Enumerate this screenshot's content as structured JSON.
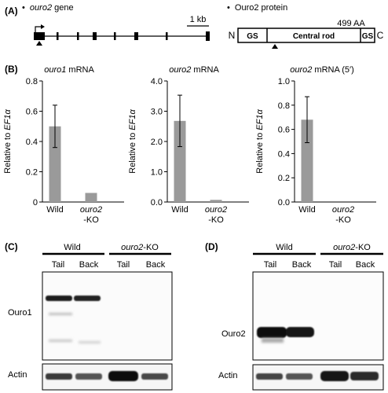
{
  "panels": {
    "a": {
      "label": "(A)",
      "gene": {
        "bullet": "•",
        "name": "ouro2",
        "suffix": " gene",
        "scale_label": "1 kb"
      },
      "protein": {
        "bullet": "•",
        "title": "Ouro2 protein",
        "length_label": "499 AA",
        "n_term": "N",
        "c_term": "C",
        "domains": [
          "GS",
          "Central rod",
          "GS"
        ]
      }
    },
    "b": {
      "label": "(B)"
    },
    "c": {
      "label": "(C)",
      "groups": [
        {
          "name": "Wild",
          "lanes": [
            "Tail",
            "Back"
          ]
        },
        {
          "name_italic": "ouro2",
          "name_rest": "-KO",
          "lanes": [
            "Tail",
            "Back"
          ]
        }
      ],
      "row_labels": [
        "Ouro1",
        "Actin"
      ]
    },
    "d": {
      "label": "(D)",
      "groups": [
        {
          "name": "Wild",
          "lanes": [
            "Tail",
            "Back"
          ]
        },
        {
          "name_italic": "ouro2",
          "name_rest": "-KO",
          "lanes": [
            "Tail",
            "Back"
          ]
        }
      ],
      "row_labels": [
        "Ouro2",
        "Actin"
      ]
    }
  },
  "chart_data": [
    {
      "type": "bar",
      "title_italic": "ouro1",
      "title_rest": " mRNA",
      "ylabel_prefix": "Relative to ",
      "ylabel_italic": "EF1α",
      "ylim": [
        0,
        0.8
      ],
      "yticks": [
        "0",
        "0.2",
        "0.4",
        "0.6",
        "0.8"
      ],
      "categories": [
        "Wild",
        "-KO"
      ],
      "category_italic_prefix": [
        "",
        "ouro2"
      ],
      "values": [
        0.5,
        0.06
      ],
      "errors": [
        0.14,
        0
      ],
      "bar_color": "#9a9a9a"
    },
    {
      "type": "bar",
      "title_italic": "ouro2",
      "title_rest": " mRNA",
      "ylabel_prefix": "Relative to ",
      "ylabel_italic": "EF1α",
      "ylim": [
        0,
        4.0
      ],
      "yticks": [
        "0.0",
        "1.0",
        "2.0",
        "3.0",
        "4.0"
      ],
      "categories": [
        "Wild",
        "-KO"
      ],
      "category_italic_prefix": [
        "",
        "ouro2"
      ],
      "values": [
        2.68,
        0.07
      ],
      "errors": [
        0.85,
        0
      ],
      "bar_color": "#9a9a9a"
    },
    {
      "type": "bar",
      "title_italic": "ouro2",
      "title_rest": " mRNA (5′)",
      "ylabel_prefix": "Relative to ",
      "ylabel_italic": "EF1α",
      "ylim": [
        0,
        1.0
      ],
      "yticks": [
        "0.0",
        "0.2",
        "0.4",
        "0.6",
        "0.8",
        "1.0"
      ],
      "categories": [
        "Wild",
        "-KO"
      ],
      "category_italic_prefix": [
        "",
        "ouro2"
      ],
      "values": [
        0.68,
        0.0
      ],
      "errors": [
        0.19,
        0
      ],
      "bar_color": "#9a9a9a"
    }
  ]
}
